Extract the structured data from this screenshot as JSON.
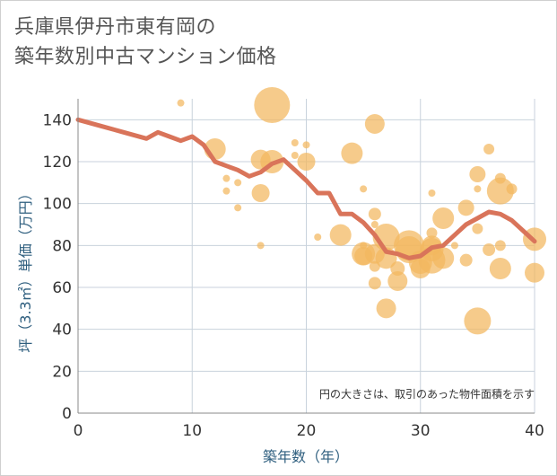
{
  "chart_data": {
    "type": "scatter",
    "title_lines": [
      "兵庫県伊丹市東有岡の",
      "築年数別中古マンション価格"
    ],
    "xlabel": "築年数（年）",
    "ylabel": "坪（3.3㎡）単価（万円）",
    "xlim": [
      0,
      40
    ],
    "ylim": [
      0,
      150
    ],
    "x_ticks": [
      0,
      10,
      20,
      30,
      40
    ],
    "y_ticks": [
      0,
      20,
      40,
      60,
      80,
      100,
      120,
      140
    ],
    "grid": true,
    "note": "円の大きさは、取引のあった物件面積を示す",
    "colors": {
      "bubble": "#f2b75e",
      "line": "#d9745a",
      "grid": "#c8d2dc",
      "axis": "#888888"
    },
    "series": [
      {
        "kind": "trend_line",
        "points": [
          [
            0,
            140
          ],
          [
            2,
            137
          ],
          [
            4,
            134
          ],
          [
            6,
            131
          ],
          [
            7,
            134
          ],
          [
            8,
            132
          ],
          [
            9,
            130
          ],
          [
            10,
            132
          ],
          [
            11,
            128
          ],
          [
            12,
            120
          ],
          [
            13,
            118
          ],
          [
            14,
            116
          ],
          [
            15,
            113
          ],
          [
            16,
            115
          ],
          [
            17,
            119
          ],
          [
            18,
            121
          ],
          [
            19,
            116
          ],
          [
            20,
            111
          ],
          [
            21,
            105
          ],
          [
            22,
            105
          ],
          [
            23,
            95
          ],
          [
            24,
            95
          ],
          [
            25,
            91
          ],
          [
            26,
            85
          ],
          [
            27,
            77
          ],
          [
            28,
            76
          ],
          [
            29,
            74
          ],
          [
            30,
            75
          ],
          [
            31,
            79
          ],
          [
            32,
            80
          ],
          [
            33,
            85
          ],
          [
            34,
            90
          ],
          [
            35,
            93
          ],
          [
            36,
            96
          ],
          [
            37,
            95
          ],
          [
            38,
            92
          ],
          [
            39,
            87
          ],
          [
            40,
            82
          ]
        ]
      },
      {
        "kind": "bubbles",
        "points": [
          [
            9,
            148,
            4
          ],
          [
            12,
            126,
            12
          ],
          [
            13,
            112,
            4
          ],
          [
            13,
            106,
            4
          ],
          [
            14,
            110,
            4
          ],
          [
            14,
            98,
            4
          ],
          [
            16,
            121,
            11
          ],
          [
            16,
            105,
            10
          ],
          [
            16,
            80,
            4
          ],
          [
            17,
            147,
            20
          ],
          [
            17,
            120,
            13
          ],
          [
            19,
            129,
            4
          ],
          [
            19,
            123,
            4
          ],
          [
            20,
            128,
            4
          ],
          [
            20,
            120,
            10
          ],
          [
            21,
            84,
            4
          ],
          [
            23,
            85,
            12
          ],
          [
            24,
            124,
            12
          ],
          [
            25,
            107,
            4
          ],
          [
            25,
            80,
            4
          ],
          [
            25,
            76,
            13
          ],
          [
            25,
            75,
            10
          ],
          [
            26,
            95,
            7
          ],
          [
            26,
            90,
            4
          ],
          [
            26,
            76,
            11
          ],
          [
            26,
            70,
            6
          ],
          [
            26,
            62,
            7
          ],
          [
            27,
            84,
            15
          ],
          [
            27,
            74,
            12
          ],
          [
            27,
            50,
            11
          ],
          [
            28,
            69,
            8
          ],
          [
            28,
            63,
            11
          ],
          [
            29,
            80,
            17
          ],
          [
            29,
            78,
            15
          ],
          [
            30,
            72,
            13
          ],
          [
            30,
            69,
            11
          ],
          [
            31,
            86,
            6
          ],
          [
            31,
            80,
            11
          ],
          [
            31,
            78,
            13
          ],
          [
            31,
            73,
            15
          ],
          [
            31,
            105,
            4
          ],
          [
            32,
            93,
            12
          ],
          [
            32,
            74,
            12
          ],
          [
            33,
            80,
            4
          ],
          [
            34,
            98,
            9
          ],
          [
            34,
            73,
            7
          ],
          [
            35,
            114,
            9
          ],
          [
            35,
            107,
            4
          ],
          [
            35,
            88,
            6
          ],
          [
            35,
            44,
            15
          ],
          [
            36,
            126,
            6
          ],
          [
            36,
            78,
            7
          ],
          [
            37,
            112,
            6
          ],
          [
            37,
            106,
            15
          ],
          [
            37,
            80,
            6
          ],
          [
            37,
            69,
            12
          ],
          [
            38,
            107,
            6
          ],
          [
            40,
            83,
            13
          ],
          [
            40,
            67,
            11
          ],
          [
            26,
            138,
            11
          ]
        ]
      }
    ]
  }
}
